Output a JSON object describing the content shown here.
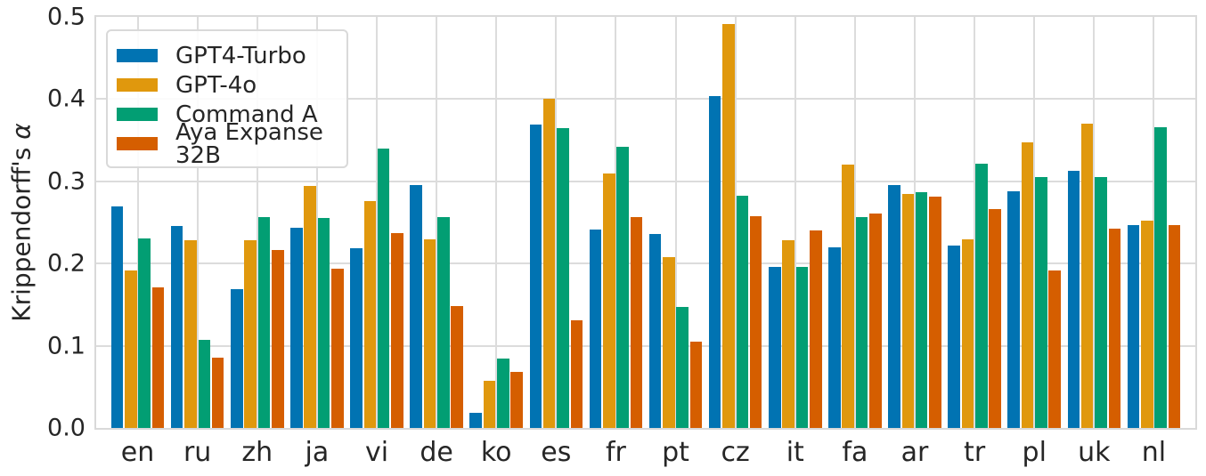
{
  "figure": {
    "ylabel_prefix": "Krippendorff's ",
    "ylabel_symbol": "α"
  },
  "chart_data": {
    "type": "bar",
    "title": "",
    "xlabel": "",
    "ylabel": "Krippendorff's α",
    "ylim": [
      0,
      0.5
    ],
    "yticks": [
      "0.0",
      "0.1",
      "0.2",
      "0.3",
      "0.4",
      "0.5"
    ],
    "grid": true,
    "legend_position": "upper-left",
    "categories": [
      "en",
      "ru",
      "zh",
      "ja",
      "vi",
      "de",
      "ko",
      "es",
      "fr",
      "pt",
      "cz",
      "it",
      "fa",
      "ar",
      "tr",
      "pl",
      "uk",
      "nl"
    ],
    "series": [
      {
        "name": "GPT4-Turbo",
        "color": "#0173B2",
        "values": [
          0.269,
          0.246,
          0.169,
          0.243,
          0.219,
          0.295,
          0.018,
          0.369,
          0.241,
          0.236,
          0.404,
          0.196,
          0.22,
          0.295,
          0.222,
          0.288,
          0.313,
          0.247
        ]
      },
      {
        "name": "GPT-4o",
        "color": "#E0980D",
        "values": [
          0.192,
          0.228,
          0.228,
          0.294,
          0.276,
          0.229,
          0.057,
          0.4,
          0.31,
          0.208,
          0.491,
          0.228,
          0.32,
          0.285,
          0.229,
          0.347,
          0.37,
          0.252
        ]
      },
      {
        "name": "Command A",
        "color": "#029E73",
        "values": [
          0.23,
          0.107,
          0.256,
          0.255,
          0.34,
          0.256,
          0.084,
          0.365,
          0.342,
          0.147,
          0.283,
          0.196,
          0.257,
          0.287,
          0.321,
          0.305,
          0.305,
          0.366
        ]
      },
      {
        "name": "Aya Expanse 32B",
        "color": "#D55E00",
        "values": [
          0.171,
          0.085,
          0.216,
          0.194,
          0.237,
          0.148,
          0.068,
          0.131,
          0.257,
          0.105,
          0.258,
          0.24,
          0.261,
          0.281,
          0.266,
          0.192,
          0.242,
          0.247
        ]
      }
    ]
  }
}
